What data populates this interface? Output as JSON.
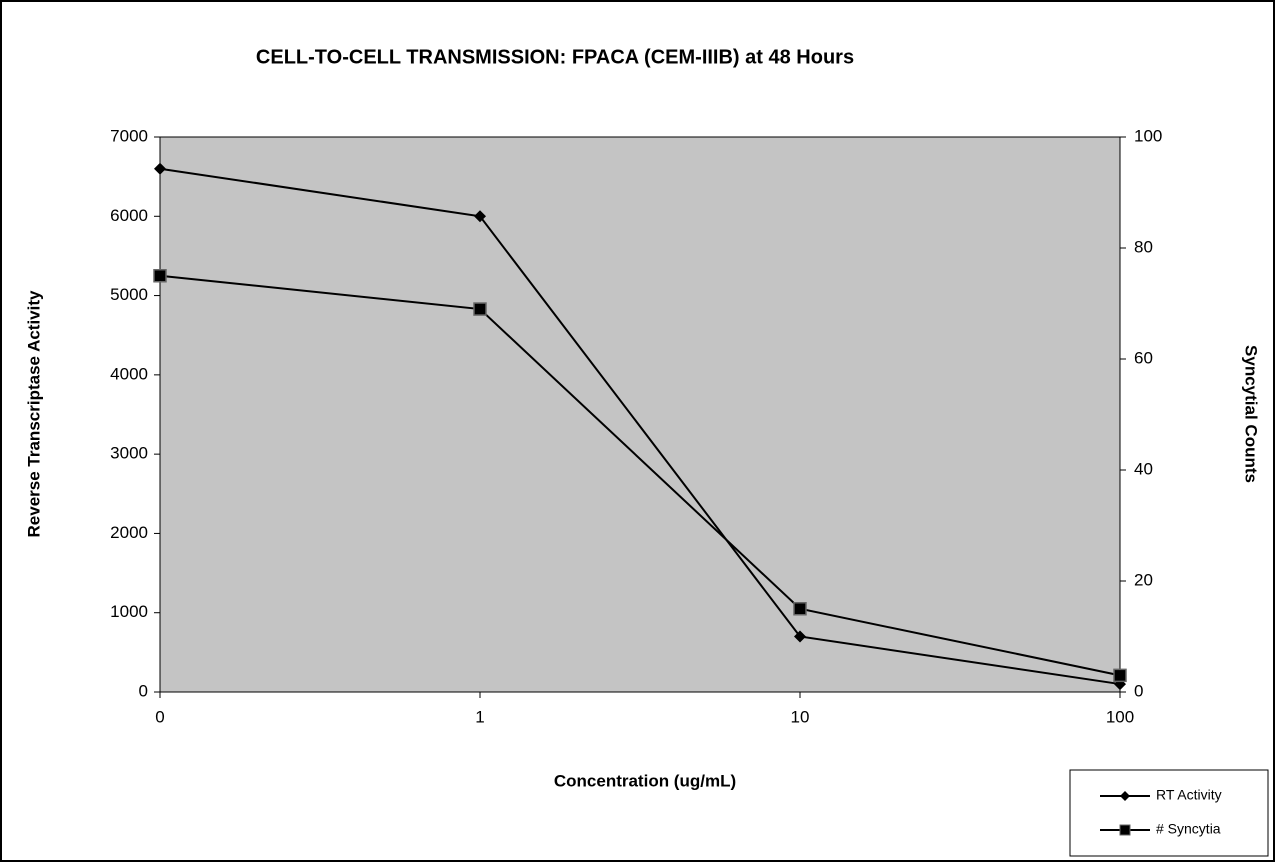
{
  "chart_data": {
    "type": "line",
    "title": "CELL-TO-CELL TRANSMISSION:  FPACA (CEM-IIIB) at 48 Hours",
    "x_label": "Concentration (ug/mL)",
    "y_label": "Reverse Transcriptase Activity",
    "y2_label": "Syncytial Counts",
    "categories": [
      "0",
      "1",
      "10",
      "100"
    ],
    "series": [
      {
        "name": "RT Activity",
        "color": "#000000",
        "marker": "diamond",
        "values": [
          6600,
          6000,
          700,
          100
        ]
      },
      {
        "name": "# Syncytia",
        "color": "#000000",
        "marker": "square",
        "axis": "y2",
        "values": [
          75,
          69,
          15,
          3
        ]
      }
    ],
    "ylim": [
      0,
      7000
    ],
    "yticks": [
      0,
      1000,
      2000,
      3000,
      4000,
      5000,
      6000,
      7000
    ],
    "y2lim": [
      0,
      100
    ],
    "y2ticks": [
      0,
      20,
      40,
      60,
      80,
      100
    ],
    "legend": "bottom-right",
    "plot_background": "#c4c4c4"
  }
}
